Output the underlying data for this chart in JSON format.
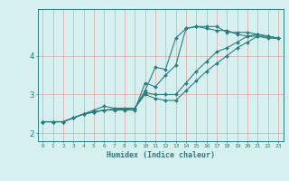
{
  "title": "",
  "xlabel": "Humidex (Indice chaleur)",
  "ylabel": "",
  "bg_color": "#d6f0f0",
  "line_color": "#2d7d7d",
  "grid_color": "#e89090",
  "xlim": [
    -0.5,
    23.5
  ],
  "ylim": [
    1.8,
    5.2
  ],
  "xticks": [
    0,
    1,
    2,
    3,
    4,
    5,
    6,
    7,
    8,
    9,
    10,
    11,
    12,
    13,
    14,
    15,
    16,
    17,
    18,
    19,
    20,
    21,
    22,
    23
  ],
  "yticks": [
    2,
    3,
    4
  ],
  "series": [
    {
      "x": [
        0,
        1,
        2,
        3,
        4,
        5,
        6,
        7,
        8,
        9,
        10,
        11,
        12,
        13,
        14,
        15,
        16,
        17,
        18,
        19,
        20,
        21,
        22,
        23
      ],
      "y": [
        2.3,
        2.3,
        2.3,
        2.4,
        2.5,
        2.6,
        2.7,
        2.65,
        2.65,
        2.65,
        3.1,
        3.7,
        3.65,
        4.45,
        4.7,
        4.75,
        4.75,
        4.75,
        4.6,
        4.6,
        4.6,
        4.55,
        4.5,
        4.45
      ]
    },
    {
      "x": [
        0,
        1,
        2,
        3,
        4,
        5,
        6,
        7,
        8,
        9,
        10,
        11,
        12,
        13,
        14,
        15,
        16,
        17,
        18,
        19,
        20,
        21,
        22,
        23
      ],
      "y": [
        2.3,
        2.3,
        2.3,
        2.4,
        2.5,
        2.55,
        2.6,
        2.6,
        2.6,
        2.6,
        3.3,
        3.2,
        3.5,
        3.75,
        4.7,
        4.75,
        4.7,
        4.65,
        4.65,
        4.55,
        4.5,
        4.5,
        4.45,
        4.45
      ]
    },
    {
      "x": [
        0,
        1,
        2,
        3,
        4,
        5,
        6,
        7,
        8,
        9,
        10,
        11,
        12,
        13,
        14,
        15,
        16,
        17,
        18,
        19,
        20,
        21,
        22,
        23
      ],
      "y": [
        2.3,
        2.3,
        2.3,
        2.4,
        2.5,
        2.55,
        2.6,
        2.62,
        2.62,
        2.65,
        3.05,
        3.0,
        3.0,
        3.0,
        3.3,
        3.6,
        3.85,
        4.1,
        4.2,
        4.35,
        4.5,
        4.55,
        4.5,
        4.45
      ]
    },
    {
      "x": [
        0,
        1,
        2,
        3,
        4,
        5,
        6,
        7,
        8,
        9,
        10,
        11,
        12,
        13,
        14,
        15,
        16,
        17,
        18,
        19,
        20,
        21,
        22,
        23
      ],
      "y": [
        2.3,
        2.3,
        2.3,
        2.4,
        2.5,
        2.55,
        2.6,
        2.62,
        2.62,
        2.65,
        3.0,
        2.9,
        2.85,
        2.85,
        3.1,
        3.35,
        3.6,
        3.8,
        4.0,
        4.2,
        4.35,
        4.5,
        4.5,
        4.45
      ]
    }
  ]
}
